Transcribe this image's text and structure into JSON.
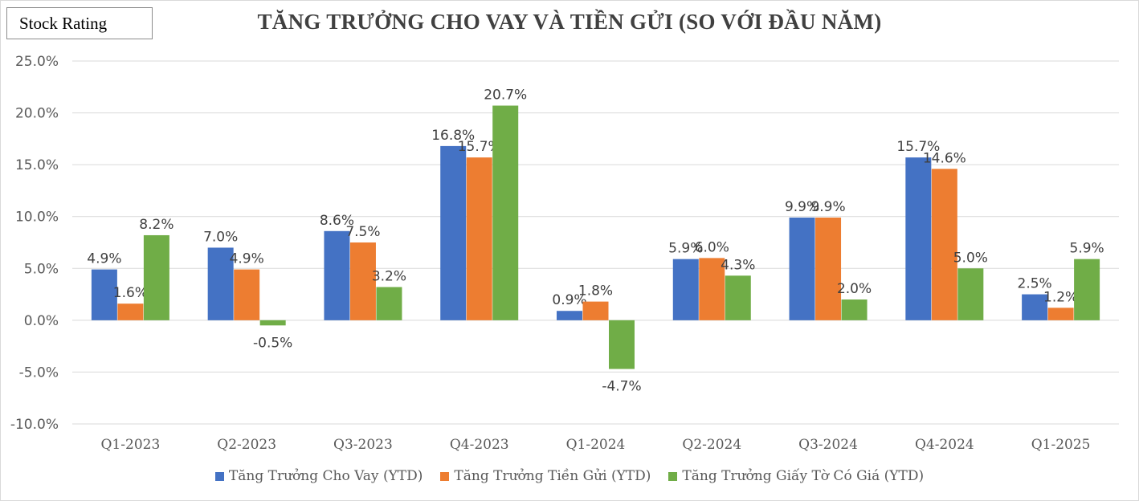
{
  "badge": "Stock Rating",
  "chart_data": {
    "type": "bar",
    "title": "TĂNG TRƯỞNG CHO VAY VÀ TIỀN GỬI (SO VỚI ĐẦU NĂM)",
    "categories": [
      "Q1-2023",
      "Q2-2023",
      "Q3-2023",
      "Q4-2023",
      "Q1-2024",
      "Q2-2024",
      "Q3-2024",
      "Q4-2024",
      "Q1-2025"
    ],
    "series": [
      {
        "name": "Tăng Trưởng Cho Vay (YTD)",
        "color": "#4472C4",
        "values": [
          4.9,
          7.0,
          8.6,
          16.8,
          0.9,
          5.9,
          9.9,
          15.7,
          2.5
        ]
      },
      {
        "name": "Tăng Trưởng Tiền Gửi (YTD)",
        "color": "#ED7D31",
        "values": [
          1.6,
          4.9,
          7.5,
          15.7,
          1.8,
          6.0,
          9.9,
          14.6,
          1.2
        ]
      },
      {
        "name": "Tăng Trưởng Giấy Tờ Có Giá (YTD)",
        "color": "#70AD47",
        "values": [
          8.2,
          -0.5,
          3.2,
          20.7,
          -4.7,
          4.3,
          2.0,
          5.0,
          5.9
        ]
      }
    ],
    "ylim": [
      -10,
      25
    ],
    "yticks": [
      -10,
      -5,
      0,
      5,
      10,
      15,
      20,
      25
    ],
    "ytick_labels": [
      "-10.0%",
      "-5.0%",
      "0.0%",
      "5.0%",
      "10.0%",
      "15.0%",
      "20.0%",
      "25.0%"
    ],
    "unit_suffix": "%",
    "grid": true,
    "legend_position": "bottom"
  }
}
